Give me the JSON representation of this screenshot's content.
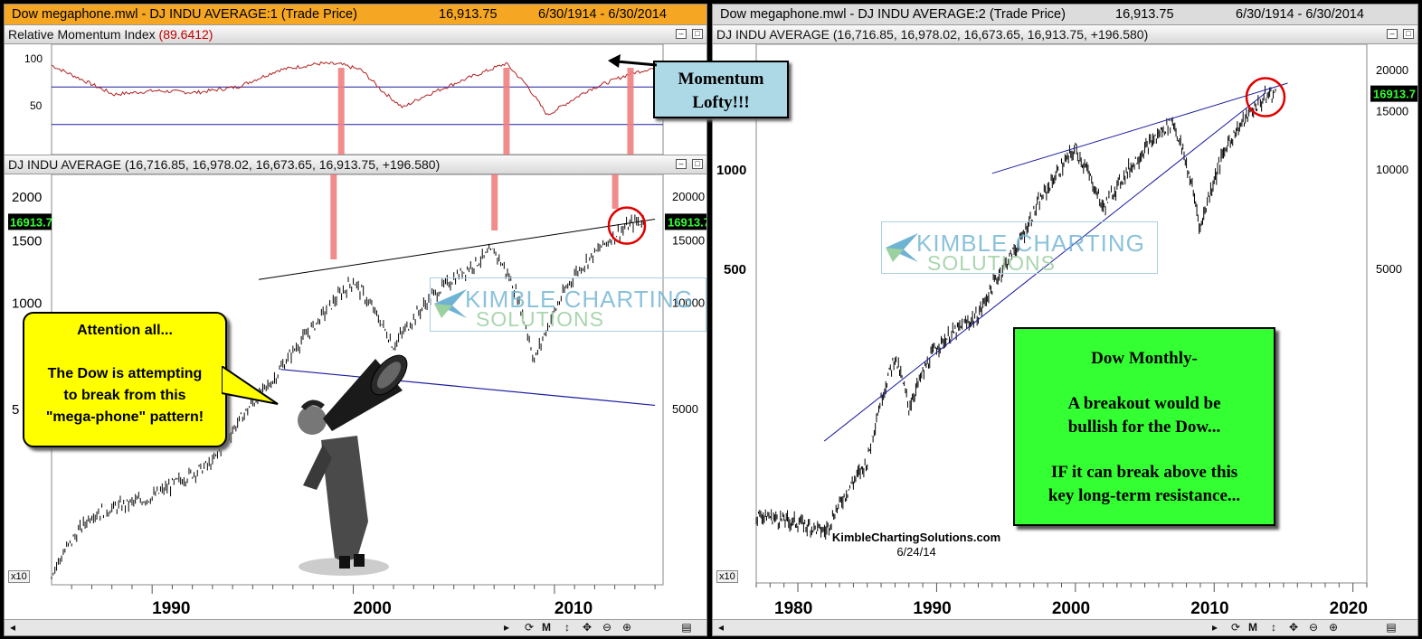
{
  "left_window": {
    "title": "Dow megaphone.mwl - DJ INDU AVERAGE:1 (Trade Price)",
    "price": "16,913.75",
    "range": "6/30/1914 - 6/30/2014"
  },
  "right_window": {
    "title": "Dow megaphone.mwl - DJ INDU AVERAGE:2 (Trade Price)",
    "price": "16,913.75",
    "range": "6/30/1914 - 6/30/2014"
  },
  "rmi_pane": {
    "label": "Relative Momentum Index",
    "value": "(89.6412)",
    "yticks": [
      "100",
      "50"
    ]
  },
  "price_pane": {
    "label": "DJ INDU AVERAGE (16,716.85, 16,978.02, 16,673.65, 16,913.75, +196.580)",
    "last_badge": "16913.7",
    "left_ticks": [
      "2000",
      "1500",
      "1000",
      "5"
    ],
    "right_ticks": [
      "20000",
      "15000",
      "10000",
      "5000"
    ],
    "multiplier": "x10",
    "x_ticks": [
      "1990",
      "2000",
      "2010"
    ]
  },
  "right_price_pane": {
    "label": "DJ INDU AVERAGE (16,716.85, 16,978.02, 16,673.65, 16,913.75, +196.580)",
    "last_badge": "16913.7",
    "left_ticks": [
      "1000",
      "500"
    ],
    "right_ticks": [
      "20000",
      "15000",
      "10000",
      "5000"
    ],
    "multiplier": "x10",
    "x_ticks": [
      "1980",
      "1990",
      "2000",
      "2010",
      "2020"
    ]
  },
  "annotations": {
    "megaphone_callout": [
      "Attention all...",
      "The Dow is attempting",
      "to break from this",
      "\"mega-phone\" pattern!"
    ],
    "momentum_box": [
      "Momentum",
      "Lofty!!!"
    ],
    "green_box": [
      "Dow Monthly-",
      "A breakout would be",
      "bullish for the Dow...",
      "IF it can break above this",
      "key long-term resistance..."
    ],
    "watermark_line1": "KIMBLE CHARTING",
    "watermark_line2": "SOLUTIONS",
    "source_site": "KimbleChartingSolutions.com",
    "source_date": "6/24/14"
  },
  "toolbar": {
    "left_arrow": "◂",
    "right_arrow": "▸",
    "refresh": "⟳",
    "m_label": "M",
    "updown": "↕",
    "move": "✥",
    "zoom_out": "⊖",
    "zoom_in": "⊕",
    "list": "▤"
  },
  "colors": {
    "price_line": "#000000",
    "rmi_line": "#b22222",
    "level_lines": "#1a1aa0",
    "highlight_bars": "#f08080",
    "circle": "#e00000",
    "badge_bg": "#000000",
    "badge_fg": "#33ff33"
  },
  "chart_data": [
    {
      "type": "line",
      "title": "Relative Momentum Index",
      "ylim": [
        0,
        100
      ],
      "x": [
        1985,
        1988,
        1990,
        1992,
        1994,
        1996,
        1998,
        1999,
        2000,
        2001,
        2002,
        2003,
        2005,
        2007,
        2008,
        2009,
        2011,
        2013,
        2014
      ],
      "values": [
        93,
        62,
        66,
        64,
        70,
        88,
        95,
        94,
        88,
        66,
        48,
        60,
        78,
        95,
        72,
        40,
        67,
        84,
        89.6
      ],
      "levels": [
        70,
        30
      ]
    },
    {
      "type": "line",
      "title": "DJ INDU AVERAGE",
      "scale": "log",
      "ylim": [
        2000,
        20000
      ],
      "x": [
        1985,
        1987,
        1990,
        1993,
        1996,
        1998,
        2000,
        2002,
        2004,
        2007,
        2008,
        2009,
        2011,
        2013,
        2014
      ],
      "values": [
        1700,
        2500,
        2800,
        3500,
        6000,
        8500,
        11500,
        7500,
        10500,
        14000,
        11000,
        6800,
        12000,
        15500,
        16913.75
      ]
    },
    {
      "type": "line",
      "title": "DJ INDU AVERAGE",
      "scale": "log",
      "x": [
        1977,
        1980,
        1982,
        1985,
        1987,
        1988,
        1990,
        1993,
        1996,
        2000,
        2002,
        2007,
        2009,
        2011,
        2013,
        2014
      ],
      "values": [
        900,
        850,
        800,
        1300,
        2700,
        1900,
        2900,
        3600,
        6000,
        11500,
        7600,
        14000,
        6600,
        12000,
        15500,
        16913.75
      ]
    }
  ]
}
